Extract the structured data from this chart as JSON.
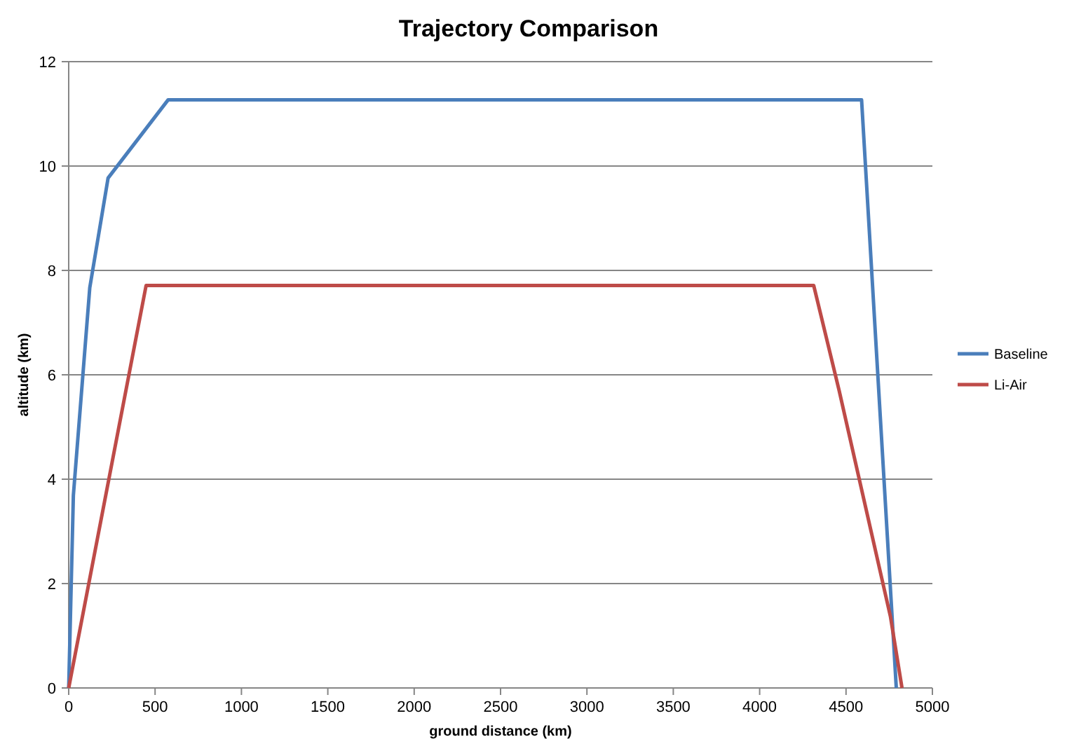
{
  "chart_data": {
    "type": "line",
    "title": "Trajectory Comparison",
    "xlabel": "ground distance (km)",
    "ylabel": "altitude (km)",
    "xlim": [
      0,
      5000
    ],
    "xticks": [
      0,
      500,
      1000,
      1500,
      2000,
      2500,
      3000,
      3500,
      4000,
      4500,
      5000
    ],
    "ylim": [
      0,
      12
    ],
    "yticks": [
      0,
      2,
      4,
      6,
      8,
      10,
      12
    ],
    "grid": "y",
    "legend": "right",
    "marker": "none",
    "line_style": "solid",
    "series": [
      {
        "name": "Baseline",
        "color": "#4a7ebb",
        "x": [
          0,
          27,
          122,
          228,
          576,
          4590,
          4791
        ],
        "values": [
          0,
          3.69,
          7.67,
          9.77,
          11.27,
          11.27,
          0
        ]
      },
      {
        "name": "Li-Air",
        "color": "#be4b48",
        "x": [
          0,
          448,
          4313,
          4460,
          4757,
          4824
        ],
        "values": [
          0,
          7.71,
          7.71,
          5.7,
          1.37,
          0
        ]
      }
    ]
  }
}
